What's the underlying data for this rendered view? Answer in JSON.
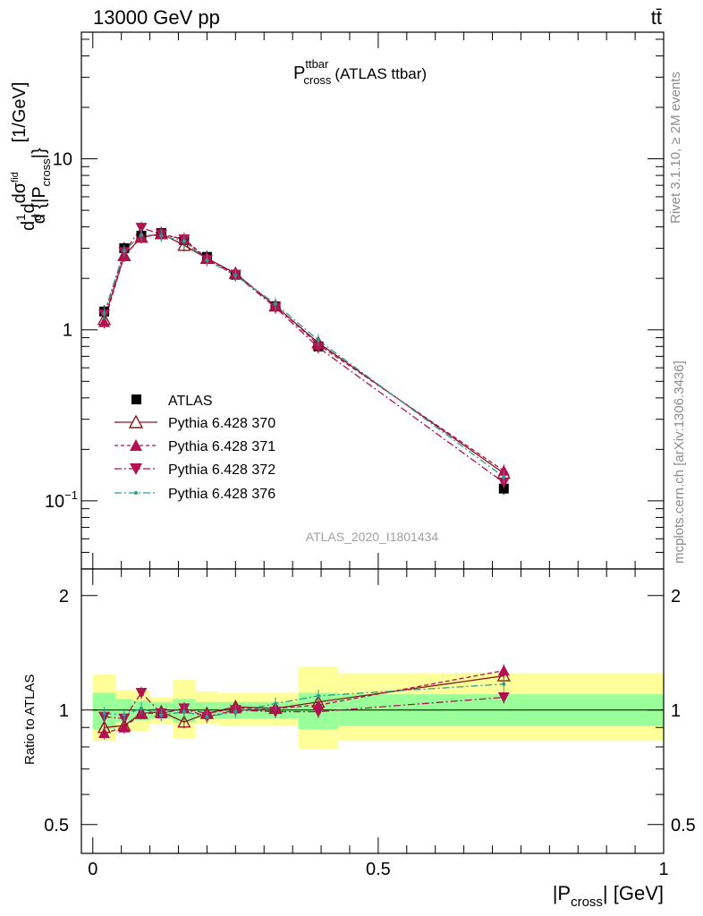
{
  "header": {
    "left": "13000 GeV pp",
    "right": "tt̄"
  },
  "side_labels": {
    "version": "Rivet 3.1.10, ≥ 2M events",
    "source": "mcplots.cern.ch [arXiv:1306.3436]"
  },
  "chart_data": [
    {
      "type": "line",
      "panel": "main",
      "title_main": "P",
      "title_sup": "ttbar",
      "title_sub": "cross",
      "title_suffix": "(ATLAS ttbar)",
      "subtitle": "ATLAS_2020_I1801434",
      "ylabel_parts": [
        "d",
        "1",
        "σ",
        "d",
        "dσ",
        "fid",
        "d {|P",
        "cross",
        "|}",
        "[1/GeV]"
      ],
      "yscale": "log",
      "ylim": [
        0.04,
        55
      ],
      "xlim": [
        -0.02,
        1.0
      ],
      "yticks": [
        {
          "value": 10,
          "label": "10"
        },
        {
          "value": 1,
          "label": "1"
        },
        {
          "value": 0.1,
          "label": "10",
          "sup": "−1"
        }
      ],
      "x": [
        0.02,
        0.055,
        0.085,
        0.12,
        0.16,
        0.2,
        0.25,
        0.32,
        0.395,
        0.72
      ],
      "series": [
        {
          "name": "ATLAS",
          "marker": "square",
          "color": "#000000",
          "line": "none",
          "values": [
            1.28,
            3.0,
            3.55,
            3.68,
            3.35,
            2.67,
            2.1,
            1.37,
            0.8,
            0.118
          ]
        },
        {
          "name": "Pythia 6.428 370",
          "marker": "triangle-open",
          "color": "#8b1a1a",
          "line": "solid",
          "values": [
            1.15,
            2.72,
            3.48,
            3.65,
            3.12,
            2.62,
            2.14,
            1.38,
            0.84,
            0.145
          ]
        },
        {
          "name": "Pythia 6.428 371",
          "marker": "triangle",
          "color": "#b40f50",
          "line": "dashed",
          "values": [
            1.11,
            2.7,
            3.48,
            3.62,
            3.4,
            2.62,
            2.12,
            1.38,
            0.82,
            0.15
          ]
        },
        {
          "name": "Pythia 6.428 372",
          "marker": "triangle-down",
          "color": "#b01252",
          "line": "dashdot",
          "values": [
            1.23,
            2.85,
            3.95,
            3.62,
            3.38,
            2.57,
            2.1,
            1.35,
            0.79,
            0.128
          ]
        },
        {
          "name": "Pythia 6.428 376",
          "marker": "dot",
          "color": "#2a9d94",
          "line": "dashdot",
          "values": [
            1.25,
            2.9,
            3.58,
            3.55,
            3.3,
            2.55,
            2.08,
            1.42,
            0.87,
            0.138
          ]
        }
      ]
    },
    {
      "type": "line",
      "panel": "ratio",
      "ylabel": "Ratio to ATLAS",
      "yscale": "log",
      "ylim": [
        0.42,
        2.35
      ],
      "xlim": [
        -0.02,
        1.0
      ],
      "xlabel_parts": [
        "|P",
        "cross",
        "| [GeV]"
      ],
      "xticks": [
        {
          "value": 0,
          "label": "0"
        },
        {
          "value": 0.5,
          "label": "0.5"
        },
        {
          "value": 1,
          "label": "1"
        }
      ],
      "yticks": [
        {
          "value": 0.5,
          "label": "0.5"
        },
        {
          "value": 1,
          "label": "1"
        },
        {
          "value": 2,
          "label": "2"
        }
      ],
      "bands": {
        "bins": [
          0.0,
          0.04,
          0.07,
          0.1,
          0.14,
          0.18,
          0.22,
          0.28,
          0.36,
          0.43,
          1.0
        ],
        "inner": [
          [
            0.89,
            1.11
          ],
          [
            0.93,
            1.07
          ],
          [
            0.94,
            1.06
          ],
          [
            0.95,
            1.05
          ],
          [
            0.93,
            1.07
          ],
          [
            0.95,
            1.05
          ],
          [
            0.95,
            1.05
          ],
          [
            0.95,
            1.05
          ],
          [
            0.89,
            1.11
          ],
          [
            0.91,
            1.1
          ]
        ],
        "outer": [
          [
            0.83,
            1.24
          ],
          [
            0.88,
            1.13
          ],
          [
            0.88,
            1.13
          ],
          [
            0.92,
            1.08
          ],
          [
            0.84,
            1.2
          ],
          [
            0.92,
            1.12
          ],
          [
            0.91,
            1.11
          ],
          [
            0.91,
            1.11
          ],
          [
            0.79,
            1.3
          ],
          [
            0.83,
            1.25
          ]
        ],
        "inner_color": "#99ff99",
        "outer_color": "#ffff99"
      },
      "x": [
        0.02,
        0.055,
        0.085,
        0.12,
        0.16,
        0.2,
        0.25,
        0.32,
        0.395,
        0.72
      ],
      "series": [
        {
          "name": "Pythia 6.428 370",
          "marker": "triangle-open",
          "color": "#8b1a1a",
          "line": "solid",
          "values": [
            0.9,
            0.91,
            0.98,
            0.99,
            0.93,
            0.98,
            1.02,
            1.01,
            1.05,
            1.23
          ]
        },
        {
          "name": "Pythia 6.428 371",
          "marker": "triangle",
          "color": "#b40f50",
          "line": "dashed",
          "values": [
            0.87,
            0.9,
            0.98,
            0.98,
            1.01,
            0.98,
            1.01,
            1.01,
            1.03,
            1.27
          ]
        },
        {
          "name": "Pythia 6.428 372",
          "marker": "triangle-down",
          "color": "#b01252",
          "line": "dashdot",
          "values": [
            0.96,
            0.95,
            1.11,
            0.98,
            1.01,
            0.96,
            1.0,
            0.99,
            0.99,
            1.08
          ]
        },
        {
          "name": "Pythia 6.428 376",
          "marker": "dot",
          "color": "#2a9d94",
          "line": "dashdot",
          "values": [
            0.98,
            0.97,
            1.01,
            0.97,
            0.99,
            0.96,
            0.99,
            1.04,
            1.09,
            1.17
          ]
        }
      ]
    }
  ]
}
